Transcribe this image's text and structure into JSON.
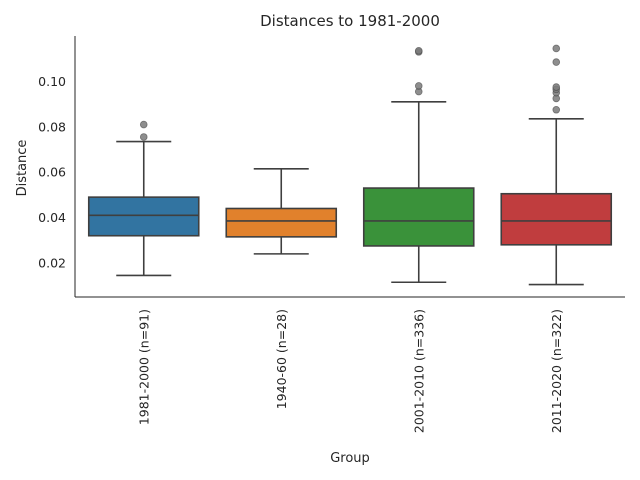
{
  "chart_data": {
    "type": "box",
    "title": "Distances to 1981-2000",
    "xlabel": "Group",
    "ylabel": "Distance",
    "ylim": [
      0.005,
      0.12
    ],
    "yticks": [
      0.02,
      0.04,
      0.06,
      0.08,
      0.1
    ],
    "ytick_labels": [
      "0.02",
      "0.04",
      "0.06",
      "0.08",
      "0.10"
    ],
    "grid": false,
    "categories": [
      "1981-2000 (n=91)",
      "1940-60 (n=28)",
      "2001-2010 (n=336)",
      "2011-2020 (n=322)"
    ],
    "boxes": [
      {
        "category": "1981-2000 (n=91)",
        "whisker_low": 0.0145,
        "q1": 0.032,
        "median": 0.041,
        "q3": 0.049,
        "whisker_high": 0.0735,
        "outliers": [
          0.0755,
          0.081
        ],
        "color": "#3274a1"
      },
      {
        "category": "1940-60 (n=28)",
        "whisker_low": 0.024,
        "q1": 0.0315,
        "median": 0.0385,
        "q3": 0.044,
        "whisker_high": 0.0615,
        "outliers": [],
        "color": "#e1812c"
      },
      {
        "category": "2001-2010 (n=336)",
        "whisker_low": 0.0115,
        "q1": 0.0275,
        "median": 0.0385,
        "q3": 0.053,
        "whisker_high": 0.091,
        "outliers": [
          0.0955,
          0.098,
          0.113,
          0.1135
        ],
        "color": "#3a923a"
      },
      {
        "category": "2011-2020 (n=322)",
        "whisker_low": 0.0105,
        "q1": 0.028,
        "median": 0.0385,
        "q3": 0.0505,
        "whisker_high": 0.0835,
        "outliers": [
          0.0875,
          0.0925,
          0.095,
          0.0965,
          0.0975,
          0.1085,
          0.1145
        ],
        "color": "#c03d3e"
      }
    ]
  }
}
